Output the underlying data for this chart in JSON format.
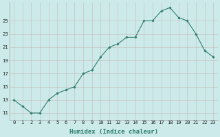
{
  "x": [
    0,
    1,
    2,
    3,
    4,
    5,
    6,
    7,
    8,
    9,
    10,
    11,
    12,
    13,
    14,
    15,
    16,
    17,
    18,
    19,
    20,
    21,
    22,
    23
  ],
  "y": [
    13,
    12,
    11,
    11,
    13,
    14,
    14.5,
    15,
    17,
    17.5,
    19.5,
    21,
    21.5,
    22.5,
    22.5,
    25,
    25,
    26.5,
    27,
    25.5,
    25,
    23,
    20.5,
    19.5
  ],
  "line_color": "#2e7d6e",
  "marker": "D",
  "marker_size": 1.8,
  "bg_color": "#cceaea",
  "grid_color": "#c8b8b8",
  "xlabel": "Humidex (Indice chaleur)",
  "yticks": [
    11,
    13,
    15,
    17,
    19,
    21,
    23,
    25
  ],
  "xlim": [
    -0.5,
    23.5
  ],
  "ylim": [
    10.0,
    27.8
  ],
  "xlabel_fontsize": 6.5,
  "tick_fontsize": 5.0
}
